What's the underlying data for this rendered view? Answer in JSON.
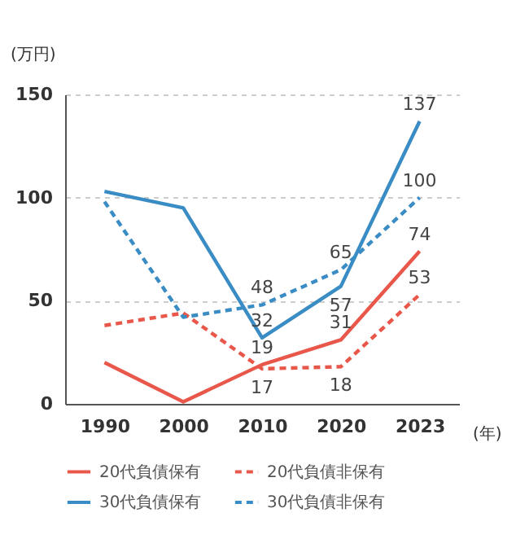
{
  "chart_data": {
    "type": "line",
    "ylabel": "(万円)",
    "xlabel": "(年)",
    "categories": [
      "1990",
      "2000",
      "2010",
      "2020",
      "2023"
    ],
    "series": [
      {
        "name": "20代負債保有",
        "color": "#e8574a",
        "line_style": "solid",
        "values": [
          20,
          1,
          19,
          31,
          74
        ],
        "value_labels": [
          null,
          null,
          "19",
          "31",
          "74"
        ]
      },
      {
        "name": "20代負債非保有",
        "color": "#e8574a",
        "line_style": "dashed",
        "values": [
          38,
          44,
          17,
          18,
          53
        ],
        "value_labels": [
          null,
          null,
          "17",
          "18",
          "53"
        ]
      },
      {
        "name": "30代負債保有",
        "color": "#3a8cc4",
        "line_style": "solid",
        "values": [
          103,
          95,
          32,
          57,
          137
        ],
        "value_labels": [
          null,
          null,
          "32",
          "57",
          "137"
        ]
      },
      {
        "name": "30代負債非保有",
        "color": "#3a8cc4",
        "line_style": "dashed",
        "values": [
          98,
          42,
          48,
          65,
          100
        ],
        "value_labels": [
          null,
          null,
          "48",
          "65",
          "100"
        ]
      }
    ],
    "ylim": [
      0,
      150
    ],
    "yticks": [
      0,
      50,
      100,
      150
    ],
    "grid": "y",
    "legend": "bottom",
    "marker": "none"
  }
}
